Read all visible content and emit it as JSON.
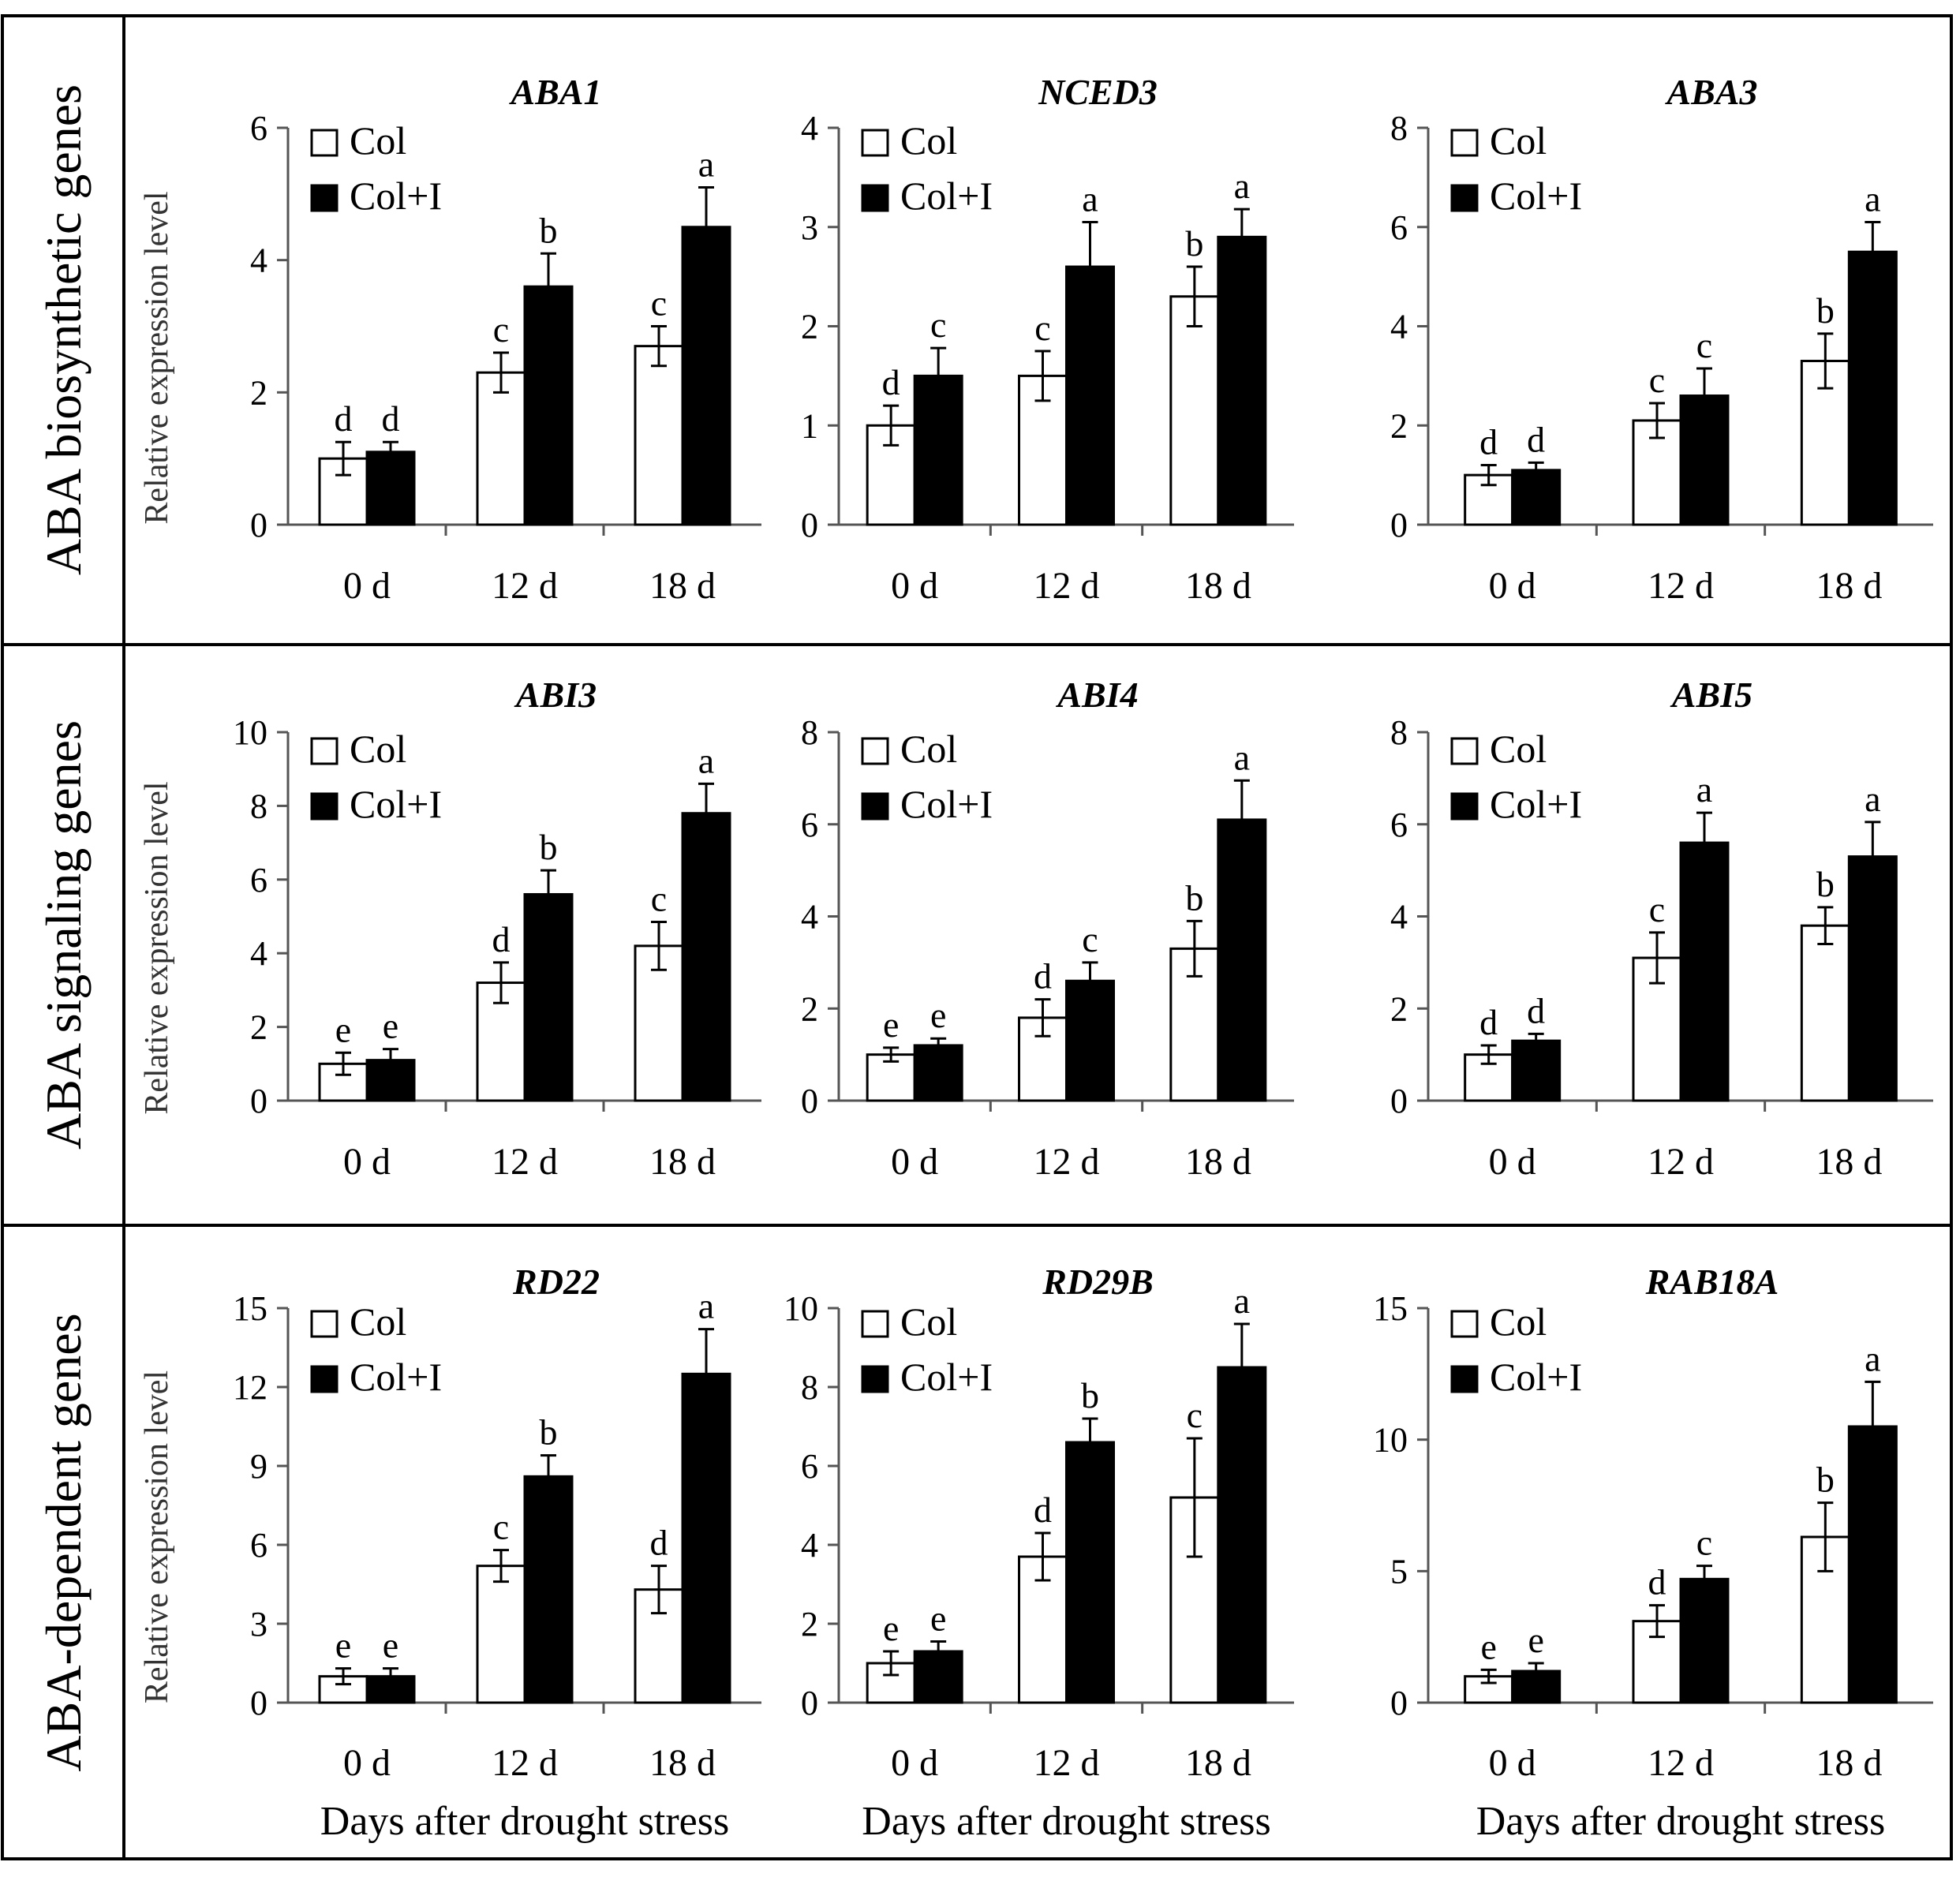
{
  "legend": {
    "col_label": "Col",
    "coli_label": "Col+I"
  },
  "colors": {
    "col": "#ffffff",
    "coli": "#000000"
  },
  "chart_data": [
    {
      "type": "bar",
      "row": 0,
      "col": 0,
      "row_label": "ABA biosynthetic genes",
      "title": "ABA1",
      "ylabel": "Relative expression level",
      "xlabel": "",
      "categories": [
        "0 d",
        "12 d",
        "18 d"
      ],
      "ylim": [
        0,
        6
      ],
      "yticks": [
        0,
        2,
        4,
        6
      ],
      "series": [
        {
          "name": "Col",
          "values": [
            1.0,
            2.3,
            2.7
          ],
          "errors": [
            0.25,
            0.3,
            0.3
          ],
          "letters": [
            "d",
            "c",
            "c"
          ]
        },
        {
          "name": "Col+I",
          "values": [
            1.1,
            3.6,
            4.5
          ],
          "errors": [
            0.15,
            0.5,
            0.6
          ],
          "letters": [
            "d",
            "b",
            "a"
          ]
        }
      ]
    },
    {
      "type": "bar",
      "row": 0,
      "col": 1,
      "title": "NCED3",
      "ylabel": "",
      "xlabel": "",
      "categories": [
        "0 d",
        "12 d",
        "18 d"
      ],
      "ylim": [
        0,
        4
      ],
      "yticks": [
        0,
        1,
        2,
        3,
        4
      ],
      "series": [
        {
          "name": "Col",
          "values": [
            1.0,
            1.5,
            2.3
          ],
          "errors": [
            0.2,
            0.25,
            0.3
          ],
          "letters": [
            "d",
            "c",
            "b"
          ]
        },
        {
          "name": "Col+I",
          "values": [
            1.5,
            2.6,
            2.9
          ],
          "errors": [
            0.28,
            0.45,
            0.28
          ],
          "letters": [
            "c",
            "a",
            "a"
          ]
        }
      ]
    },
    {
      "type": "bar",
      "row": 0,
      "col": 2,
      "title": "ABA3",
      "ylabel": "",
      "xlabel": "",
      "categories": [
        "0 d",
        "12 d",
        "18 d"
      ],
      "ylim": [
        0,
        8
      ],
      "yticks": [
        0,
        2,
        4,
        6,
        8
      ],
      "series": [
        {
          "name": "Col",
          "values": [
            1.0,
            2.1,
            3.3
          ],
          "errors": [
            0.2,
            0.35,
            0.55
          ],
          "letters": [
            "d",
            "c",
            "b"
          ]
        },
        {
          "name": "Col+I",
          "values": [
            1.1,
            2.6,
            5.5
          ],
          "errors": [
            0.15,
            0.55,
            0.6
          ],
          "letters": [
            "d",
            "c",
            "a"
          ]
        }
      ]
    },
    {
      "type": "bar",
      "row": 1,
      "col": 0,
      "row_label": "ABA signaling genes",
      "title": "ABI3",
      "ylabel": "Relative expression level",
      "xlabel": "",
      "categories": [
        "0 d",
        "12 d",
        "18 d"
      ],
      "ylim": [
        0,
        10
      ],
      "yticks": [
        0,
        2,
        4,
        6,
        8,
        10
      ],
      "series": [
        {
          "name": "Col",
          "values": [
            1.0,
            3.2,
            4.2
          ],
          "errors": [
            0.3,
            0.55,
            0.65
          ],
          "letters": [
            "e",
            "d",
            "c"
          ]
        },
        {
          "name": "Col+I",
          "values": [
            1.1,
            5.6,
            7.8
          ],
          "errors": [
            0.3,
            0.65,
            0.8
          ],
          "letters": [
            "e",
            "b",
            "a"
          ]
        }
      ]
    },
    {
      "type": "bar",
      "row": 1,
      "col": 1,
      "title": "ABI4",
      "ylabel": "",
      "xlabel": "",
      "categories": [
        "0 d",
        "12 d",
        "18 d"
      ],
      "ylim": [
        0,
        8
      ],
      "yticks": [
        0,
        2,
        4,
        6,
        8
      ],
      "series": [
        {
          "name": "Col",
          "values": [
            1.0,
            1.8,
            3.3
          ],
          "errors": [
            0.15,
            0.4,
            0.6
          ],
          "letters": [
            "e",
            "d",
            "b"
          ]
        },
        {
          "name": "Col+I",
          "values": [
            1.2,
            2.6,
            6.1
          ],
          "errors": [
            0.15,
            0.4,
            0.85
          ],
          "letters": [
            "e",
            "c",
            "a"
          ]
        }
      ]
    },
    {
      "type": "bar",
      "row": 1,
      "col": 2,
      "title": "ABI5",
      "ylabel": "",
      "xlabel": "",
      "categories": [
        "0 d",
        "12 d",
        "18 d"
      ],
      "ylim": [
        0,
        8
      ],
      "yticks": [
        0,
        2,
        4,
        6,
        8
      ],
      "series": [
        {
          "name": "Col",
          "values": [
            1.0,
            3.1,
            3.8
          ],
          "errors": [
            0.2,
            0.55,
            0.4
          ],
          "letters": [
            "d",
            "c",
            "b"
          ]
        },
        {
          "name": "Col+I",
          "values": [
            1.3,
            5.6,
            5.3
          ],
          "errors": [
            0.15,
            0.65,
            0.75
          ],
          "letters": [
            "d",
            "a",
            "a"
          ]
        }
      ]
    },
    {
      "type": "bar",
      "row": 2,
      "col": 0,
      "row_label": "ABA-dependent genes",
      "title": "RD22",
      "ylabel": "Relative expression level",
      "xlabel": "Days after drought stress",
      "categories": [
        "0 d",
        "12 d",
        "18 d"
      ],
      "ylim": [
        0,
        15
      ],
      "yticks": [
        0,
        3,
        6,
        9,
        12,
        15
      ],
      "series": [
        {
          "name": "Col",
          "values": [
            1.0,
            5.2,
            4.3
          ],
          "errors": [
            0.3,
            0.6,
            0.9
          ],
          "letters": [
            "e",
            "c",
            "d"
          ]
        },
        {
          "name": "Col+I",
          "values": [
            1.0,
            8.6,
            12.5
          ],
          "errors": [
            0.3,
            0.8,
            1.7
          ],
          "letters": [
            "e",
            "b",
            "a"
          ]
        }
      ]
    },
    {
      "type": "bar",
      "row": 2,
      "col": 1,
      "title": "RD29B",
      "ylabel": "",
      "xlabel": "Days after drought stress",
      "categories": [
        "0 d",
        "12 d",
        "18 d"
      ],
      "ylim": [
        0,
        10
      ],
      "yticks": [
        0,
        2,
        4,
        6,
        8,
        10
      ],
      "series": [
        {
          "name": "Col",
          "values": [
            1.0,
            3.7,
            5.2
          ],
          "errors": [
            0.3,
            0.6,
            1.5
          ],
          "letters": [
            "e",
            "d",
            "c"
          ]
        },
        {
          "name": "Col+I",
          "values": [
            1.3,
            6.6,
            8.5
          ],
          "errors": [
            0.25,
            0.6,
            1.1
          ],
          "letters": [
            "e",
            "b",
            "a"
          ]
        }
      ]
    },
    {
      "type": "bar",
      "row": 2,
      "col": 2,
      "title": "RAB18A",
      "ylabel": "",
      "xlabel": "Days after drought stress",
      "categories": [
        "0 d",
        "12 d",
        "18 d"
      ],
      "ylim": [
        0,
        15
      ],
      "yticks": [
        0,
        5,
        10,
        15
      ],
      "series": [
        {
          "name": "Col",
          "values": [
            1.0,
            3.1,
            6.3
          ],
          "errors": [
            0.25,
            0.6,
            1.3
          ],
          "letters": [
            "e",
            "d",
            "b"
          ]
        },
        {
          "name": "Col+I",
          "values": [
            1.2,
            4.7,
            10.5
          ],
          "errors": [
            0.3,
            0.5,
            1.7
          ],
          "letters": [
            "e",
            "c",
            "a"
          ]
        }
      ]
    }
  ]
}
